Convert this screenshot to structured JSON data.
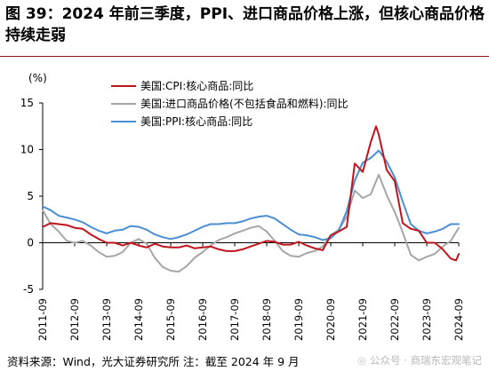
{
  "figure": {
    "title": "图 39：2024 年前三季度，PPI、进口商品价格上涨，但核心商品价格持续走弱",
    "footer": "资料来源：Wind，光大证券研究所   注：截至 2024 年 9 月",
    "watermark": "公众号 · 商瑞东宏观笔记",
    "watermark_icon": "wechat-icon"
  },
  "chart_data": {
    "type": "line",
    "unit_label": "(%)",
    "xlabel": "",
    "ylabel": "",
    "ylim": [
      -5,
      15
    ],
    "yticks": [
      -5,
      0,
      5,
      10,
      15
    ],
    "grid": false,
    "legend_position": "top-left",
    "x_ticks": [
      "2011-09",
      "2012-09",
      "2013-09",
      "2014-09",
      "2015-09",
      "2016-09",
      "2017-09",
      "2018-09",
      "2019-09",
      "2020-09",
      "2021-09",
      "2022-09",
      "2023-09",
      "2024-09"
    ],
    "x_range": [
      "2011-09",
      "2024-09"
    ],
    "series": [
      {
        "name": "美国:CPI:核心商品:同比",
        "color": "#c0141c",
        "points": [
          [
            "2011-09",
            1.7
          ],
          [
            "2011-12",
            2.1
          ],
          [
            "2012-03",
            2.0
          ],
          [
            "2012-06",
            1.9
          ],
          [
            "2012-09",
            1.6
          ],
          [
            "2012-12",
            1.5
          ],
          [
            "2013-03",
            0.9
          ],
          [
            "2013-06",
            0.4
          ],
          [
            "2013-09",
            0.0
          ],
          [
            "2013-12",
            0.0
          ],
          [
            "2014-03",
            -0.3
          ],
          [
            "2014-06",
            0.0
          ],
          [
            "2014-09",
            -0.3
          ],
          [
            "2014-12",
            -0.5
          ],
          [
            "2015-03",
            -0.1
          ],
          [
            "2015-06",
            -0.4
          ],
          [
            "2015-09",
            -0.5
          ],
          [
            "2015-12",
            -0.5
          ],
          [
            "2016-03",
            -0.3
          ],
          [
            "2016-06",
            -0.6
          ],
          [
            "2016-09",
            -0.5
          ],
          [
            "2016-12",
            -0.4
          ],
          [
            "2017-03",
            -0.7
          ],
          [
            "2017-06",
            -0.9
          ],
          [
            "2017-09",
            -0.9
          ],
          [
            "2017-12",
            -0.7
          ],
          [
            "2018-03",
            -0.4
          ],
          [
            "2018-06",
            -0.1
          ],
          [
            "2018-09",
            0.2
          ],
          [
            "2018-12",
            0.1
          ],
          [
            "2019-03",
            -0.2
          ],
          [
            "2019-06",
            -0.2
          ],
          [
            "2019-09",
            0.1
          ],
          [
            "2019-12",
            -0.3
          ],
          [
            "2020-03",
            -0.6
          ],
          [
            "2020-06",
            -0.8
          ],
          [
            "2020-09",
            0.8
          ],
          [
            "2020-12",
            1.2
          ],
          [
            "2021-03",
            1.7
          ],
          [
            "2021-06",
            8.5
          ],
          [
            "2021-09",
            7.6
          ],
          [
            "2021-12",
            10.8
          ],
          [
            "2022-02",
            12.5
          ],
          [
            "2022-03",
            11.6
          ],
          [
            "2022-06",
            7.8
          ],
          [
            "2022-09",
            6.6
          ],
          [
            "2022-12",
            2.1
          ],
          [
            "2023-03",
            1.5
          ],
          [
            "2023-06",
            1.3
          ],
          [
            "2023-09",
            0.0
          ],
          [
            "2023-12",
            0.0
          ],
          [
            "2024-03",
            -0.7
          ],
          [
            "2024-06",
            -1.7
          ],
          [
            "2024-08",
            -1.9
          ],
          [
            "2024-09",
            -1.2
          ]
        ]
      },
      {
        "name": "美国:进口商品价格(不包括食品和燃料):同比",
        "color": "#a6a6a6",
        "points": [
          [
            "2011-09",
            3.5
          ],
          [
            "2011-12",
            2.0
          ],
          [
            "2012-03",
            1.2
          ],
          [
            "2012-06",
            0.2
          ],
          [
            "2012-09",
            0.0
          ],
          [
            "2012-12",
            0.2
          ],
          [
            "2013-03",
            -0.3
          ],
          [
            "2013-06",
            -1.0
          ],
          [
            "2013-09",
            -1.5
          ],
          [
            "2013-12",
            -1.4
          ],
          [
            "2014-03",
            -1.0
          ],
          [
            "2014-06",
            0.0
          ],
          [
            "2014-09",
            0.4
          ],
          [
            "2014-12",
            -0.1
          ],
          [
            "2015-03",
            -1.6
          ],
          [
            "2015-06",
            -2.6
          ],
          [
            "2015-09",
            -3.0
          ],
          [
            "2015-12",
            -3.1
          ],
          [
            "2016-03",
            -2.5
          ],
          [
            "2016-06",
            -1.6
          ],
          [
            "2016-09",
            -1.0
          ],
          [
            "2016-12",
            -0.3
          ],
          [
            "2017-03",
            0.3
          ],
          [
            "2017-06",
            0.6
          ],
          [
            "2017-09",
            1.0
          ],
          [
            "2017-12",
            1.3
          ],
          [
            "2018-03",
            1.6
          ],
          [
            "2018-06",
            1.8
          ],
          [
            "2018-09",
            1.2
          ],
          [
            "2018-12",
            0.2
          ],
          [
            "2019-03",
            -0.9
          ],
          [
            "2019-06",
            -1.4
          ],
          [
            "2019-09",
            -1.5
          ],
          [
            "2019-12",
            -1.1
          ],
          [
            "2020-03",
            -0.9
          ],
          [
            "2020-06",
            -0.4
          ],
          [
            "2020-09",
            0.8
          ],
          [
            "2020-12",
            1.4
          ],
          [
            "2021-03",
            2.8
          ],
          [
            "2021-06",
            5.6
          ],
          [
            "2021-09",
            4.8
          ],
          [
            "2021-12",
            5.2
          ],
          [
            "2022-03",
            7.3
          ],
          [
            "2022-06",
            5.1
          ],
          [
            "2022-09",
            3.3
          ],
          [
            "2022-12",
            1.1
          ],
          [
            "2023-03",
            -1.3
          ],
          [
            "2023-06",
            -1.9
          ],
          [
            "2023-09",
            -1.5
          ],
          [
            "2023-12",
            -1.2
          ],
          [
            "2024-03",
            -0.4
          ],
          [
            "2024-06",
            0.2
          ],
          [
            "2024-09",
            1.6
          ]
        ]
      },
      {
        "name": "美国:PPI:核心商品:同比",
        "color": "#4a8fd4",
        "points": [
          [
            "2011-09",
            3.9
          ],
          [
            "2011-12",
            3.5
          ],
          [
            "2012-03",
            2.9
          ],
          [
            "2012-06",
            2.7
          ],
          [
            "2012-09",
            2.5
          ],
          [
            "2012-12",
            2.2
          ],
          [
            "2013-03",
            1.7
          ],
          [
            "2013-06",
            1.3
          ],
          [
            "2013-09",
            1.0
          ],
          [
            "2013-12",
            1.3
          ],
          [
            "2014-03",
            1.4
          ],
          [
            "2014-06",
            1.8
          ],
          [
            "2014-09",
            1.7
          ],
          [
            "2014-12",
            1.4
          ],
          [
            "2015-03",
            0.9
          ],
          [
            "2015-06",
            0.6
          ],
          [
            "2015-09",
            0.4
          ],
          [
            "2015-12",
            0.6
          ],
          [
            "2016-03",
            0.9
          ],
          [
            "2016-06",
            1.3
          ],
          [
            "2016-09",
            1.7
          ],
          [
            "2016-12",
            2.0
          ],
          [
            "2017-03",
            2.0
          ],
          [
            "2017-06",
            2.1
          ],
          [
            "2017-09",
            2.1
          ],
          [
            "2017-12",
            2.3
          ],
          [
            "2018-03",
            2.6
          ],
          [
            "2018-06",
            2.8
          ],
          [
            "2018-09",
            2.9
          ],
          [
            "2018-12",
            2.6
          ],
          [
            "2019-03",
            2.0
          ],
          [
            "2019-06",
            1.4
          ],
          [
            "2019-09",
            0.9
          ],
          [
            "2019-12",
            0.8
          ],
          [
            "2020-03",
            0.6
          ],
          [
            "2020-06",
            0.3
          ],
          [
            "2020-09",
            0.5
          ],
          [
            "2020-12",
            1.3
          ],
          [
            "2021-03",
            3.4
          ],
          [
            "2021-06",
            6.7
          ],
          [
            "2021-09",
            8.6
          ],
          [
            "2021-12",
            9.1
          ],
          [
            "2022-03",
            9.9
          ],
          [
            "2022-06",
            8.7
          ],
          [
            "2022-09",
            7.0
          ],
          [
            "2022-12",
            4.4
          ],
          [
            "2023-03",
            2.0
          ],
          [
            "2023-06",
            1.3
          ],
          [
            "2023-09",
            1.0
          ],
          [
            "2023-12",
            1.2
          ],
          [
            "2024-03",
            1.5
          ],
          [
            "2024-06",
            2.0
          ],
          [
            "2024-09",
            2.0
          ]
        ]
      }
    ]
  }
}
